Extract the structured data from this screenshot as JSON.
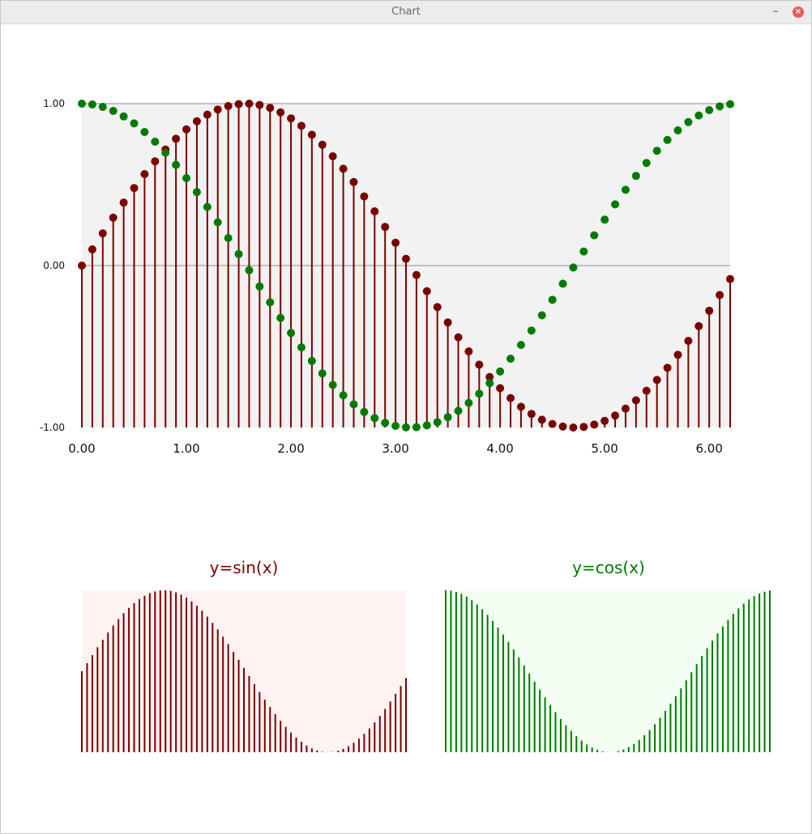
{
  "window": {
    "title": "Chart",
    "minimize_glyph": "–",
    "close_glyph": "×"
  },
  "colors": {
    "sin": "#7b0000",
    "cos": "#007b00",
    "main_plot_bg": "#f2f2f2",
    "sin_plot_bg": "#fff2f2",
    "cos_plot_bg": "#f2fff2",
    "gridline": "#b0b0b0"
  },
  "chart_data": [
    {
      "type": "scatter",
      "title": "",
      "xlabel": "",
      "ylabel": "",
      "xlim": [
        0,
        6.2
      ],
      "ylim": [
        -1,
        1
      ],
      "x_ticks": [
        "0.00",
        "1.00",
        "2.00",
        "3.00",
        "4.00",
        "5.00",
        "6.00"
      ],
      "y_ticks": [
        "1.00",
        "0.00",
        "-1.00"
      ],
      "grid": "horizontal lines at 1.00 and 0.00",
      "x": [
        0.0,
        0.1,
        0.2,
        0.3,
        0.4,
        0.5,
        0.6,
        0.7,
        0.8,
        0.9,
        1.0,
        1.1,
        1.2,
        1.3,
        1.4,
        1.5,
        1.6,
        1.7,
        1.8,
        1.9,
        2.0,
        2.1,
        2.2,
        2.3,
        2.4,
        2.5,
        2.6,
        2.7,
        2.8,
        2.9,
        3.0,
        3.1,
        3.2,
        3.3,
        3.4,
        3.5,
        3.6,
        3.7,
        3.8,
        3.9,
        4.0,
        4.1,
        4.2,
        4.3,
        4.4,
        4.5,
        4.6,
        4.7,
        4.8,
        4.9,
        5.0,
        5.1,
        5.2,
        5.3,
        5.4,
        5.5,
        5.6,
        5.7,
        5.8,
        5.9,
        6.0,
        6.1,
        6.2
      ],
      "series": [
        {
          "style": "stem",
          "values": [
            0.0,
            0.1,
            0.199,
            0.296,
            0.389,
            0.479,
            0.565,
            0.644,
            0.717,
            0.783,
            0.841,
            0.891,
            0.932,
            0.964,
            0.985,
            0.997,
            1.0,
            0.992,
            0.974,
            0.946,
            0.909,
            0.863,
            0.808,
            0.746,
            0.675,
            0.598,
            0.516,
            0.427,
            0.335,
            0.239,
            0.141,
            0.042,
            -0.058,
            -0.158,
            -0.256,
            -0.351,
            -0.443,
            -0.53,
            -0.612,
            -0.688,
            -0.757,
            -0.818,
            -0.872,
            -0.916,
            -0.952,
            -0.978,
            -0.994,
            -1.0,
            -0.996,
            -0.982,
            -0.959,
            -0.926,
            -0.883,
            -0.832,
            -0.773,
            -0.706,
            -0.631,
            -0.551,
            -0.465,
            -0.374,
            -0.279,
            -0.182,
            -0.083
          ]
        },
        {
          "style": "points",
          "values": [
            1.0,
            0.995,
            0.98,
            0.955,
            0.921,
            0.878,
            0.825,
            0.765,
            0.697,
            0.622,
            0.54,
            0.454,
            0.362,
            0.267,
            0.17,
            0.071,
            -0.029,
            -0.129,
            -0.227,
            -0.323,
            -0.416,
            -0.505,
            -0.589,
            -0.666,
            -0.737,
            -0.801,
            -0.857,
            -0.904,
            -0.942,
            -0.971,
            -0.99,
            -0.999,
            -0.998,
            -0.987,
            -0.967,
            -0.936,
            -0.897,
            -0.848,
            -0.791,
            -0.726,
            -0.654,
            -0.575,
            -0.49,
            -0.401,
            -0.307,
            -0.211,
            -0.112,
            -0.012,
            0.087,
            0.187,
            0.284,
            0.378,
            0.468,
            0.554,
            0.634,
            0.709,
            0.776,
            0.835,
            0.886,
            0.927,
            0.96,
            0.983,
            0.997
          ]
        }
      ]
    },
    {
      "type": "bar",
      "title": "y=sin(x)",
      "ylim": [
        -1,
        1
      ],
      "values": [
        0.0,
        0.1,
        0.199,
        0.296,
        0.389,
        0.479,
        0.565,
        0.644,
        0.717,
        0.783,
        0.841,
        0.891,
        0.932,
        0.964,
        0.985,
        0.997,
        1.0,
        0.992,
        0.974,
        0.946,
        0.909,
        0.863,
        0.808,
        0.746,
        0.675,
        0.598,
        0.516,
        0.427,
        0.335,
        0.239,
        0.141,
        0.042,
        -0.058,
        -0.158,
        -0.256,
        -0.351,
        -0.443,
        -0.53,
        -0.612,
        -0.688,
        -0.757,
        -0.818,
        -0.872,
        -0.916,
        -0.952,
        -0.978,
        -0.994,
        -1.0,
        -0.996,
        -0.982,
        -0.959,
        -0.926,
        -0.883,
        -0.832,
        -0.773,
        -0.706,
        -0.631,
        -0.551,
        -0.465,
        -0.374,
        -0.279,
        -0.182,
        -0.083
      ]
    },
    {
      "type": "bar",
      "title": "y=cos(x)",
      "ylim": [
        -1,
        1
      ],
      "values": [
        1.0,
        0.995,
        0.98,
        0.955,
        0.921,
        0.878,
        0.825,
        0.765,
        0.697,
        0.622,
        0.54,
        0.454,
        0.362,
        0.267,
        0.17,
        0.071,
        -0.029,
        -0.129,
        -0.227,
        -0.323,
        -0.416,
        -0.505,
        -0.589,
        -0.666,
        -0.737,
        -0.801,
        -0.857,
        -0.904,
        -0.942,
        -0.971,
        -0.99,
        -0.999,
        -0.998,
        -0.987,
        -0.967,
        -0.936,
        -0.897,
        -0.848,
        -0.791,
        -0.726,
        -0.654,
        -0.575,
        -0.49,
        -0.401,
        -0.307,
        -0.211,
        -0.112,
        -0.012,
        0.087,
        0.187,
        0.284,
        0.378,
        0.468,
        0.554,
        0.634,
        0.709,
        0.776,
        0.835,
        0.886,
        0.927,
        0.96,
        0.983,
        0.997
      ]
    }
  ]
}
